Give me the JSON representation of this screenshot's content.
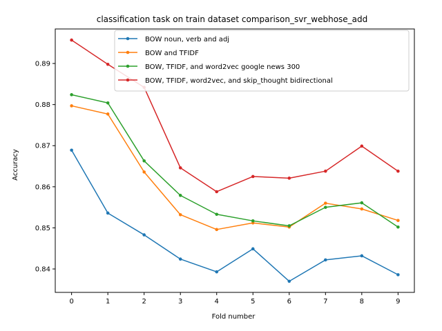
{
  "chart_data": {
    "type": "line",
    "title": "classification task on train dataset comparison_svr_webhose_add",
    "xlabel": "Fold number",
    "ylabel": "Accuracy",
    "x": [
      0,
      1,
      2,
      3,
      4,
      5,
      6,
      7,
      8,
      9
    ],
    "x_ticks": [
      "0",
      "1",
      "2",
      "3",
      "4",
      "5",
      "6",
      "7",
      "8",
      "9"
    ],
    "xlim": [
      -0.45,
      9.45
    ],
    "ylim": [
      0.8343,
      0.8984
    ],
    "y_ticks": [
      0.84,
      0.85,
      0.86,
      0.87,
      0.88,
      0.89
    ],
    "y_tick_labels": [
      "0.84",
      "0.85",
      "0.86",
      "0.87",
      "0.88",
      "0.89"
    ],
    "grid": false,
    "legend_position": "top-right",
    "series": [
      {
        "name": "BOW noun, verb and adj",
        "color": "#1f77b4",
        "values": [
          0.8689,
          0.8536,
          0.8483,
          0.8424,
          0.8393,
          0.8449,
          0.837,
          0.8422,
          0.8432,
          0.8386
        ]
      },
      {
        "name": "BOW and TFIDF",
        "color": "#ff7f0e",
        "values": [
          0.8797,
          0.8777,
          0.8636,
          0.8532,
          0.8496,
          0.8512,
          0.8502,
          0.856,
          0.8546,
          0.8518
        ]
      },
      {
        "name": "BOW, TFIDF, and word2vec google news 300",
        "color": "#2ca02c",
        "values": [
          0.8824,
          0.8804,
          0.8663,
          0.8579,
          0.8533,
          0.8517,
          0.8505,
          0.855,
          0.8561,
          0.8502
        ]
      },
      {
        "name": "BOW, TFIDF, word2vec, and skip_thought bidirectional",
        "color": "#d62728",
        "values": [
          0.8957,
          0.8898,
          0.8842,
          0.8646,
          0.8588,
          0.8625,
          0.8621,
          0.8638,
          0.8699,
          0.8638
        ]
      }
    ]
  }
}
